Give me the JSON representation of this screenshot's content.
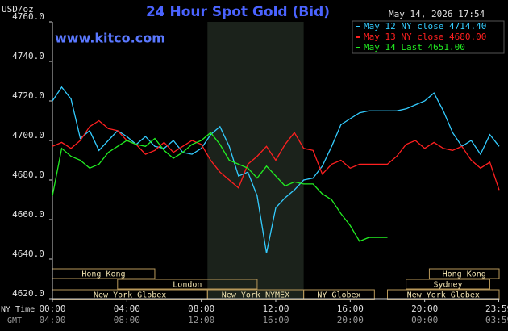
{
  "chart_data": {
    "type": "line",
    "title": "24 Hour Spot Gold (Bid)",
    "unit_label": "USD/oz",
    "timestamp": "May 14, 2026 17:54",
    "website": "www.kitco.com",
    "xlim": [
      0,
      24
    ],
    "ylim": [
      4620,
      4760
    ],
    "yticks": [
      {
        "value": 4620,
        "label": "4620.0"
      },
      {
        "value": 4640,
        "label": "4640.0"
      },
      {
        "value": 4660,
        "label": "4660.0"
      },
      {
        "value": 4680,
        "label": "4680.0"
      },
      {
        "value": 4700,
        "label": "4700.0"
      },
      {
        "value": 4720,
        "label": "4720.0"
      },
      {
        "value": 4740,
        "label": "4740.0"
      },
      {
        "value": 4760,
        "label": "4760.0"
      }
    ],
    "xticks": [
      {
        "value": 0,
        "label": "00:00"
      },
      {
        "value": 4,
        "label": "04:00"
      },
      {
        "value": 8,
        "label": "08:00"
      },
      {
        "value": 12,
        "label": "12:00"
      },
      {
        "value": 16,
        "label": "16:00"
      },
      {
        "value": 20,
        "label": "20:00"
      },
      {
        "value": 23.98,
        "label": "23:59"
      }
    ],
    "x_axis_label": "NY Time",
    "x2_axis_label": "GMT",
    "x2_tick_labels": [
      "04:00",
      "08:00",
      "12:00",
      "16:00",
      "20:00",
      "00:00",
      "03:59"
    ],
    "session_rows": [
      [
        {
          "name": "Hong Kong",
          "start": 0,
          "end": 5.5
        },
        {
          "name": "Hong Kong",
          "start": 20.25,
          "end": 24
        }
      ],
      [
        {
          "name": "London",
          "start": 3.5,
          "end": 11
        },
        {
          "name": "Sydney",
          "start": 19,
          "end": 23.5
        }
      ],
      [
        {
          "name": "New York Globex",
          "start": 0,
          "end": 8.33
        },
        {
          "name": "New York NYMEX",
          "start": 8.33,
          "end": 13.5
        },
        {
          "name": "NY Globex",
          "start": 13.5,
          "end": 17.3
        },
        {
          "name": "New York Globex",
          "start": 18,
          "end": 24
        }
      ]
    ],
    "x": [
      0,
      0.5,
      1,
      1.5,
      2,
      2.5,
      3,
      3.5,
      4,
      4.5,
      5,
      5.5,
      6,
      6.5,
      7,
      7.5,
      8,
      8.5,
      9,
      9.5,
      10,
      10.5,
      11,
      11.5,
      12,
      12.5,
      13,
      13.5,
      14,
      14.5,
      15,
      15.5,
      16,
      16.5,
      17,
      17.5,
      18,
      18.5,
      19,
      19.5,
      20,
      20.5,
      21,
      21.5,
      22,
      22.5,
      23,
      23.5,
      24
    ],
    "series": [
      {
        "name": "May 12 NY close 4714.40",
        "color": "#33ccff",
        "values": [
          4720,
          4727,
          4721,
          4701,
          4705,
          4695,
          4700,
          4705,
          4702,
          4698,
          4702,
          4697,
          4696,
          4700,
          4694,
          4693,
          4696,
          4703,
          4707,
          4697,
          4682,
          4684,
          4672,
          4643,
          4666,
          4671,
          4675,
          4680,
          4681,
          4687,
          4697,
          4708,
          4711,
          4714,
          4715,
          4715,
          4715,
          4715,
          4716,
          4718,
          4720,
          4724,
          4715,
          4704,
          4697,
          4700,
          4693,
          4703,
          4697
        ]
      },
      {
        "name": "May 13 NY close 4680.00",
        "color": "#ff2020",
        "values": [
          4697,
          4699,
          4696,
          4700,
          4707,
          4710,
          4706,
          4705,
          4700,
          4698,
          4693,
          4695,
          4699,
          4694,
          4697,
          4700,
          4698,
          4690,
          4684,
          4680,
          4676,
          4688,
          4692,
          4697,
          4690,
          4698,
          4704,
          4696,
          4695,
          4683,
          4688,
          4690,
          4686,
          4688,
          4688,
          4688,
          4688,
          4692,
          4698,
          4700,
          4696,
          4699,
          4696,
          4695,
          4697,
          4690,
          4686,
          4689,
          4675
        ]
      },
      {
        "name": "May 14 Last 4651.00",
        "color": "#22ee22",
        "values": [
          4672,
          4696,
          4692,
          4690,
          4686,
          4688,
          4694,
          4697,
          4700,
          4698,
          4697,
          4701,
          4695,
          4691,
          4694,
          4698,
          4700,
          4704,
          4698,
          4690,
          4688,
          4686,
          4681,
          4687,
          4682,
          4677,
          4679,
          4678,
          4678,
          4673,
          4670,
          4663,
          4657,
          4649,
          4651,
          4651,
          4651,
          null,
          null,
          null,
          null,
          null,
          null,
          null,
          null,
          null,
          null,
          null,
          null
        ]
      }
    ]
  }
}
